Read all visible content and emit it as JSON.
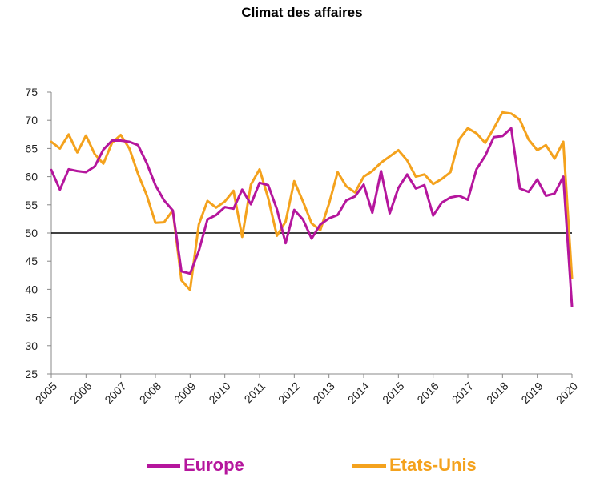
{
  "chart_data": {
    "type": "line",
    "title": "Climat des affaires",
    "xlabel": "",
    "ylabel": "",
    "ylim": [
      25,
      75
    ],
    "yticks": [
      25,
      30,
      35,
      40,
      45,
      50,
      55,
      60,
      65,
      70,
      75
    ],
    "xlim": [
      2005,
      2020
    ],
    "xticks": [
      2005,
      2006,
      2007,
      2008,
      2009,
      2010,
      2011,
      2012,
      2013,
      2014,
      2015,
      2016,
      2017,
      2018,
      2019,
      2020
    ],
    "reference_line": 50,
    "grid": false,
    "legend": "bottom",
    "series": [
      {
        "name": "Europe",
        "color": "#b5169d",
        "points": [
          [
            2005.0,
            61.2
          ],
          [
            2005.25,
            57.7
          ],
          [
            2005.5,
            61.3
          ],
          [
            2005.75,
            61.0
          ],
          [
            2006.0,
            60.8
          ],
          [
            2006.25,
            61.8
          ],
          [
            2006.5,
            64.8
          ],
          [
            2006.75,
            66.4
          ],
          [
            2007.0,
            66.4
          ],
          [
            2007.25,
            66.2
          ],
          [
            2007.5,
            65.6
          ],
          [
            2007.75,
            62.4
          ],
          [
            2008.0,
            58.5
          ],
          [
            2008.25,
            55.8
          ],
          [
            2008.5,
            54.0
          ],
          [
            2008.75,
            43.2
          ],
          [
            2009.0,
            42.8
          ],
          [
            2009.25,
            46.8
          ],
          [
            2009.5,
            52.4
          ],
          [
            2009.75,
            53.2
          ],
          [
            2010.0,
            54.6
          ],
          [
            2010.25,
            54.3
          ],
          [
            2010.5,
            57.7
          ],
          [
            2010.75,
            55.1
          ],
          [
            2011.0,
            58.9
          ],
          [
            2011.25,
            58.5
          ],
          [
            2011.5,
            54.2
          ],
          [
            2011.75,
            48.2
          ],
          [
            2012.0,
            54.1
          ],
          [
            2012.25,
            52.4
          ],
          [
            2012.5,
            49.0
          ],
          [
            2012.75,
            51.5
          ],
          [
            2013.0,
            52.6
          ],
          [
            2013.25,
            53.2
          ],
          [
            2013.5,
            55.8
          ],
          [
            2013.75,
            56.5
          ],
          [
            2014.0,
            58.6
          ],
          [
            2014.25,
            53.6
          ],
          [
            2014.5,
            61.0
          ],
          [
            2014.75,
            53.5
          ],
          [
            2015.0,
            58.0
          ],
          [
            2015.25,
            60.4
          ],
          [
            2015.5,
            57.9
          ],
          [
            2015.75,
            58.5
          ],
          [
            2016.0,
            53.1
          ],
          [
            2016.25,
            55.4
          ],
          [
            2016.5,
            56.3
          ],
          [
            2016.75,
            56.6
          ],
          [
            2017.0,
            55.9
          ],
          [
            2017.25,
            61.3
          ],
          [
            2017.5,
            63.7
          ],
          [
            2017.75,
            67.0
          ],
          [
            2018.0,
            67.2
          ],
          [
            2018.25,
            68.6
          ],
          [
            2018.5,
            57.9
          ],
          [
            2018.75,
            57.3
          ],
          [
            2019.0,
            59.5
          ],
          [
            2019.25,
            56.6
          ],
          [
            2019.5,
            57.0
          ],
          [
            2019.75,
            60.0
          ],
          [
            2020.0,
            37.0
          ]
        ]
      },
      {
        "name": "Etats-Unis",
        "color": "#f4a21d",
        "points": [
          [
            2005.0,
            66.2
          ],
          [
            2005.25,
            65.0
          ],
          [
            2005.5,
            67.5
          ],
          [
            2005.75,
            64.3
          ],
          [
            2006.0,
            67.3
          ],
          [
            2006.25,
            64.0
          ],
          [
            2006.5,
            62.3
          ],
          [
            2006.75,
            66.0
          ],
          [
            2007.0,
            67.4
          ],
          [
            2007.25,
            65.0
          ],
          [
            2007.5,
            60.5
          ],
          [
            2007.75,
            56.7
          ],
          [
            2008.0,
            51.8
          ],
          [
            2008.25,
            51.9
          ],
          [
            2008.5,
            54.0
          ],
          [
            2008.75,
            41.6
          ],
          [
            2009.0,
            39.9
          ],
          [
            2009.25,
            51.5
          ],
          [
            2009.5,
            55.7
          ],
          [
            2009.75,
            54.5
          ],
          [
            2010.0,
            55.6
          ],
          [
            2010.25,
            57.5
          ],
          [
            2010.5,
            49.3
          ],
          [
            2010.75,
            58.6
          ],
          [
            2011.0,
            61.3
          ],
          [
            2011.25,
            56.2
          ],
          [
            2011.5,
            49.5
          ],
          [
            2011.75,
            52.0
          ],
          [
            2012.0,
            59.2
          ],
          [
            2012.25,
            55.6
          ],
          [
            2012.5,
            51.7
          ],
          [
            2012.75,
            50.5
          ],
          [
            2013.0,
            55.2
          ],
          [
            2013.25,
            60.8
          ],
          [
            2013.5,
            58.3
          ],
          [
            2013.75,
            57.2
          ],
          [
            2014.0,
            60.0
          ],
          [
            2014.25,
            61.0
          ],
          [
            2014.5,
            62.5
          ],
          [
            2014.75,
            63.6
          ],
          [
            2015.0,
            64.7
          ],
          [
            2015.25,
            62.9
          ],
          [
            2015.5,
            60.0
          ],
          [
            2015.75,
            60.4
          ],
          [
            2016.0,
            58.7
          ],
          [
            2016.25,
            59.6
          ],
          [
            2016.5,
            60.8
          ],
          [
            2016.75,
            66.6
          ],
          [
            2017.0,
            68.6
          ],
          [
            2017.25,
            67.7
          ],
          [
            2017.5,
            66.0
          ],
          [
            2017.75,
            68.6
          ],
          [
            2018.0,
            71.4
          ],
          [
            2018.25,
            71.2
          ],
          [
            2018.5,
            70.1
          ],
          [
            2018.75,
            66.6
          ],
          [
            2019.0,
            64.7
          ],
          [
            2019.25,
            65.6
          ],
          [
            2019.5,
            63.2
          ],
          [
            2019.75,
            66.2
          ],
          [
            2020.0,
            42.0
          ]
        ]
      }
    ]
  }
}
